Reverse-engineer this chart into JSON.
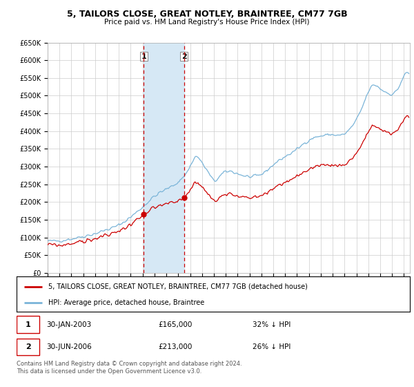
{
  "title": "5, TAILORS CLOSE, GREAT NOTLEY, BRAINTREE, CM77 7GB",
  "subtitle": "Price paid vs. HM Land Registry's House Price Index (HPI)",
  "ylim": [
    0,
    650000
  ],
  "yticks": [
    0,
    50000,
    100000,
    150000,
    200000,
    250000,
    300000,
    350000,
    400000,
    450000,
    500000,
    550000,
    600000,
    650000
  ],
  "ytick_labels": [
    "£0",
    "£50K",
    "£100K",
    "£150K",
    "£200K",
    "£250K",
    "£300K",
    "£350K",
    "£400K",
    "£450K",
    "£500K",
    "£550K",
    "£600K",
    "£650K"
  ],
  "xlim_start": 1995.0,
  "xlim_end": 2025.5,
  "purchase1_date": 2003.08,
  "purchase1_price": 165000,
  "purchase2_date": 2006.5,
  "purchase2_price": 213000,
  "hpi_color": "#7ab4d8",
  "price_color": "#cc0000",
  "shade_color": "#d6e8f5",
  "vline_color": "#cc0000",
  "legend_label_price": "5, TAILORS CLOSE, GREAT NOTLEY, BRAINTREE, CM77 7GB (detached house)",
  "legend_label_hpi": "HPI: Average price, detached house, Braintree",
  "footer1": "Contains HM Land Registry data © Crown copyright and database right 2024.",
  "footer2": "This data is licensed under the Open Government Licence v3.0."
}
